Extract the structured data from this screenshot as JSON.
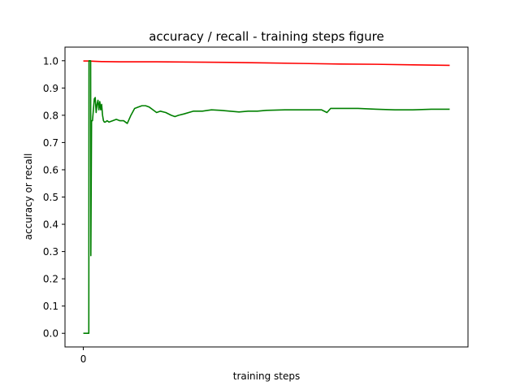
{
  "chart_data": {
    "type": "line",
    "title": "accuracy / recall - training steps figure",
    "xlabel": "training steps",
    "ylabel": "accuracy or recall",
    "xlim": [
      -1.0,
      21.0
    ],
    "ylim": [
      -0.05,
      1.05
    ],
    "x_ticks": [
      0
    ],
    "y_ticks": [
      0.0,
      0.1,
      0.2,
      0.3,
      0.4,
      0.5,
      0.6,
      0.7,
      0.8,
      0.9,
      1.0
    ],
    "grid": false,
    "legend": "none",
    "series": [
      {
        "color": "#ff0000",
        "x": [
          0.0,
          0.3,
          0.6,
          1.0,
          2.0,
          4.0,
          6.0,
          8.0,
          10.0,
          12.0,
          14.0,
          16.0,
          18.0,
          20.0
        ],
        "y": [
          0.999,
          0.999,
          0.998,
          0.997,
          0.996,
          0.996,
          0.995,
          0.994,
          0.992,
          0.99,
          0.988,
          0.987,
          0.985,
          0.983
        ]
      },
      {
        "color": "#008000",
        "x": [
          0.0,
          0.25,
          0.3,
          0.31,
          0.35,
          0.4,
          0.41,
          0.45,
          0.5,
          0.55,
          0.6,
          0.65,
          0.7,
          0.75,
          0.8,
          0.85,
          0.9,
          0.95,
          1.0,
          1.05,
          1.1,
          1.15,
          1.2,
          1.3,
          1.4,
          1.6,
          1.8,
          2.0,
          2.2,
          2.4,
          2.6,
          2.8,
          3.0,
          3.2,
          3.4,
          3.6,
          3.8,
          4.0,
          4.2,
          4.5,
          4.8,
          5.0,
          5.2,
          5.5,
          6.0,
          6.5,
          7.0,
          7.5,
          8.0,
          8.5,
          9.0,
          9.5,
          10.0,
          11.0,
          12.0,
          13.0,
          13.3,
          13.5,
          14.0,
          15.0,
          16.0,
          17.0,
          18.0,
          19.0,
          20.0
        ],
        "y": [
          0.0,
          0.0,
          0.0,
          1.0,
          1.0,
          1.0,
          0.285,
          0.78,
          0.78,
          0.82,
          0.86,
          0.865,
          0.81,
          0.84,
          0.855,
          0.82,
          0.85,
          0.82,
          0.84,
          0.8,
          0.78,
          0.775,
          0.775,
          0.78,
          0.775,
          0.78,
          0.785,
          0.78,
          0.78,
          0.77,
          0.8,
          0.825,
          0.83,
          0.835,
          0.835,
          0.83,
          0.82,
          0.81,
          0.815,
          0.81,
          0.8,
          0.795,
          0.8,
          0.805,
          0.815,
          0.815,
          0.82,
          0.818,
          0.815,
          0.812,
          0.815,
          0.815,
          0.818,
          0.82,
          0.82,
          0.82,
          0.81,
          0.825,
          0.825,
          0.825,
          0.822,
          0.82,
          0.82,
          0.822,
          0.822
        ]
      }
    ]
  }
}
